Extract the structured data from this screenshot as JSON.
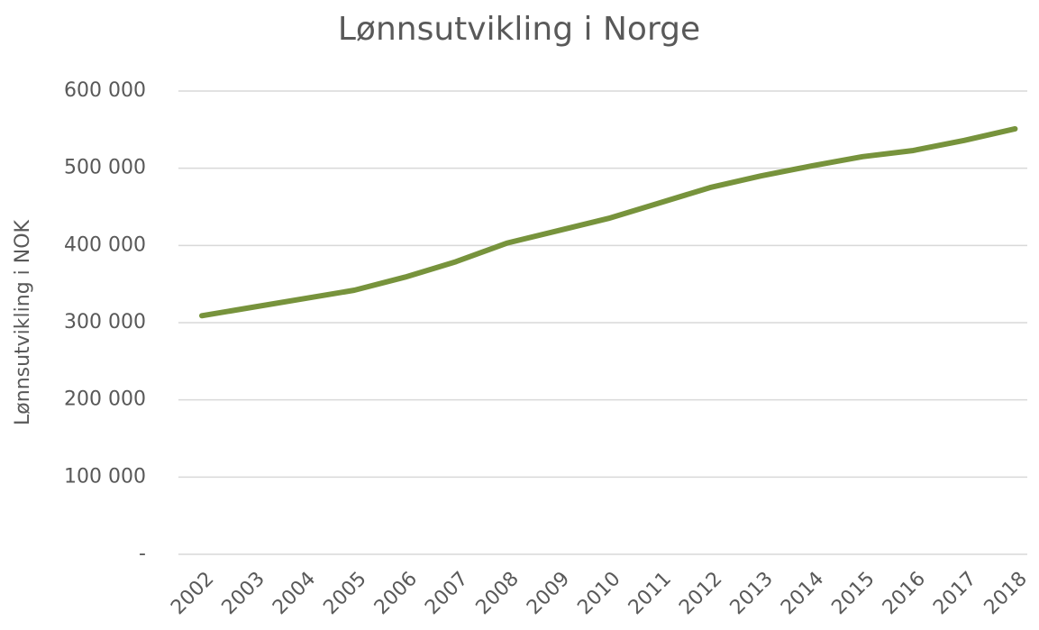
{
  "chart_data": {
    "type": "line",
    "title": "Lønnsutvikling i Norge",
    "y_label": "Lønnsutvikling i NOK",
    "categories": [
      "2002",
      "2003",
      "2004",
      "2005",
      "2006",
      "2007",
      "2008",
      "2009",
      "2010",
      "2011",
      "2012",
      "2013",
      "2014",
      "2015",
      "2016",
      "2017",
      "2018"
    ],
    "values": [
      309000,
      320000,
      331000,
      342000,
      359000,
      379000,
      403000,
      419000,
      435000,
      455000,
      475000,
      490000,
      503000,
      515000,
      523000,
      536000,
      551000
    ],
    "color": "#77933c",
    "ylim": [
      0,
      600000
    ],
    "yticks": [
      {
        "value": 0,
        "label": "-"
      },
      {
        "value": 100000,
        "label": "100 000"
      },
      {
        "value": 200000,
        "label": "200 000"
      },
      {
        "value": 300000,
        "label": "300 000"
      },
      {
        "value": 400000,
        "label": "400 000"
      },
      {
        "value": 500000,
        "label": "500 000"
      },
      {
        "value": 600000,
        "label": "600 000"
      }
    ],
    "grid": true
  }
}
